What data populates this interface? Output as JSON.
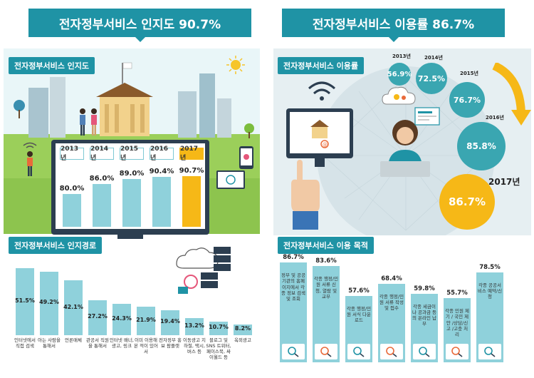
{
  "left_banner": "전자정부서비스 인지도 90.7%",
  "right_banner": "전자정부서비스 이용률 86.7%",
  "awareness_tag": "전자정부서비스 인지도",
  "path_tag": "전자정부서비스 인지경로",
  "usage_tag": "전자정부서비스 이용률",
  "purpose_tag": "전자정부서비스 이용 목적",
  "chart_data": [
    {
      "type": "bar",
      "categories": [
        "2013년",
        "2014년",
        "2015년",
        "2016년",
        "2017년"
      ],
      "values": [
        80.0,
        86.0,
        89.0,
        90.4,
        90.7
      ],
      "value_labels": [
        "80.0%",
        "86.0%",
        "89.0%",
        "90.4%",
        "90.7%"
      ],
      "title": "전자정부서비스 인지도"
    },
    {
      "type": "bar",
      "categories": [
        "인터넷에서 직접 검색",
        "아는 사람을 통해서",
        "언론매체",
        "관공서 직원을 통해서",
        "인터넷 배너, 광고, 링크",
        "이미 이용해 본 적이 있어서",
        "전자정부 홍보 팜플렛",
        "이동광고 지하철, 택시, 버스 등",
        "블로그 및 SNS 트위터, 페이스북, 싸이월드 등",
        "옥외광고"
      ],
      "values": [
        51.5,
        49.2,
        42.1,
        27.2,
        24.3,
        21.9,
        19.4,
        13.2,
        10.7,
        8.2
      ],
      "value_labels": [
        "51.5%",
        "49.2%",
        "42.1%",
        "27.2%",
        "24.3%",
        "21.9%",
        "19.4%",
        "13.2%",
        "10.7%",
        "8.2%"
      ],
      "title": "전자정부서비스 인지경로"
    },
    {
      "type": "bubble",
      "categories": [
        "2013년",
        "2014년",
        "2015년",
        "2016년",
        "2017년"
      ],
      "values": [
        56.9,
        72.5,
        76.7,
        85.8,
        86.7
      ],
      "value_labels": [
        "56.9%",
        "72.5%",
        "76.7%",
        "85.8%",
        "86.7%"
      ],
      "title": "전자정부서비스 이용률"
    },
    {
      "type": "bar",
      "categories": [
        "정부 및 공공기관의 홈페이지에서 각종 정보 검색 및 조회",
        "각종 행정/민원 서류 신청, 열람 및 교부",
        "각종 행정/민원 서식 다운로드",
        "각종 행정/민원 서류 작성 및 접수",
        "각종 세금이나 공과금 등의 온라인 납부",
        "각종 민원 제기 / 국민 제안 /상담/신고 /고충 처리",
        "각종 공공서비스 예약/신청"
      ],
      "values": [
        86.7,
        83.6,
        57.6,
        68.4,
        59.8,
        55.7,
        78.5
      ],
      "value_labels": [
        "86.7%",
        "83.6%",
        "57.6%",
        "68.4%",
        "59.8%",
        "55.7%",
        "78.5%"
      ],
      "title": "전자정부서비스 이용 목적"
    }
  ],
  "colors": {
    "teal": "#1f93a5",
    "bar": "#8fd1db",
    "bar_dark": "#6cc0cc",
    "gold": "#f6b817",
    "circle_teal": "#3aa6b1"
  },
  "icons": [
    "sun-icon",
    "wifi-icon",
    "monitor-icon",
    "cloud-gear-icon",
    "server-icon",
    "magnifier-icon",
    "form-icon",
    "download-icon",
    "pen-icon",
    "coin-icon",
    "people-icon",
    "hand-pointer-icon"
  ]
}
